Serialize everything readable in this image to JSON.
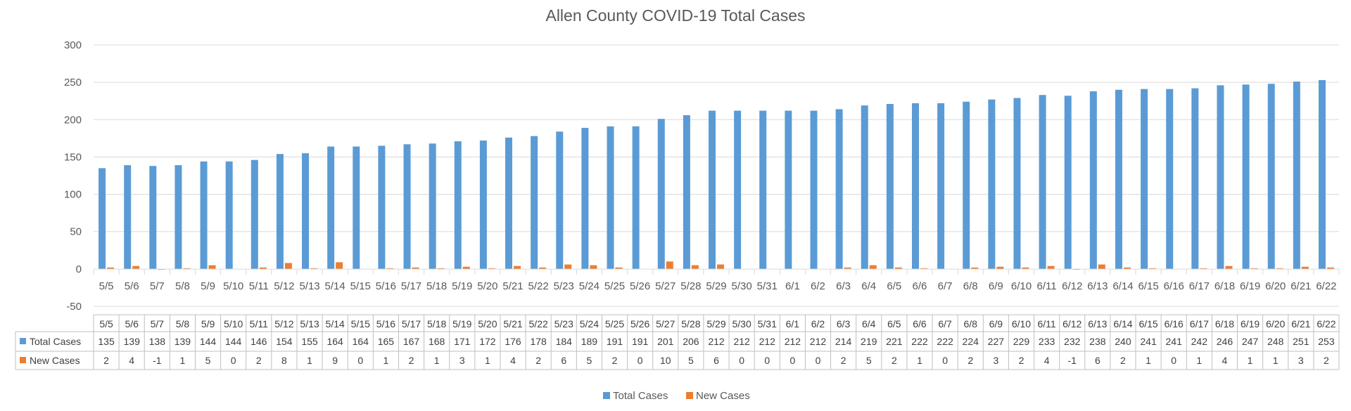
{
  "chart_data": {
    "type": "bar",
    "title": "Allen County COVID-19 Total Cases",
    "categories": [
      "5/5",
      "5/6",
      "5/7",
      "5/8",
      "5/9",
      "5/10",
      "5/11",
      "5/12",
      "5/13",
      "5/14",
      "5/15",
      "5/16",
      "5/17",
      "5/18",
      "5/19",
      "5/20",
      "5/21",
      "5/22",
      "5/23",
      "5/24",
      "5/25",
      "5/26",
      "5/27",
      "5/28",
      "5/29",
      "5/30",
      "5/31",
      "6/1",
      "6/2",
      "6/3",
      "6/4",
      "6/5",
      "6/6",
      "6/7",
      "6/8",
      "6/9",
      "6/10",
      "6/11",
      "6/12",
      "6/13",
      "6/14",
      "6/15",
      "6/16",
      "6/17",
      "6/18",
      "6/19",
      "6/20",
      "6/21",
      "6/22"
    ],
    "series": [
      {
        "name": "Total Cases",
        "color": "#5B9BD5",
        "values": [
          135,
          139,
          138,
          139,
          144,
          144,
          146,
          154,
          155,
          164,
          164,
          165,
          167,
          168,
          171,
          172,
          176,
          178,
          184,
          189,
          191,
          191,
          201,
          206,
          212,
          212,
          212,
          212,
          212,
          214,
          219,
          221,
          222,
          222,
          224,
          227,
          229,
          233,
          232,
          238,
          240,
          241,
          241,
          242,
          246,
          247,
          248,
          251,
          253
        ]
      },
      {
        "name": "New Cases",
        "color": "#ED7D31",
        "values": [
          2,
          4,
          -1,
          1,
          5,
          0,
          2,
          8,
          1,
          9,
          0,
          1,
          2,
          1,
          3,
          1,
          4,
          2,
          6,
          5,
          2,
          0,
          10,
          5,
          6,
          0,
          0,
          0,
          0,
          2,
          5,
          2,
          1,
          0,
          2,
          3,
          2,
          4,
          -1,
          6,
          2,
          1,
          0,
          1,
          4,
          1,
          1,
          3,
          2
        ]
      }
    ],
    "ylim": [
      -50,
      300
    ],
    "yticks": [
      -50,
      0,
      50,
      100,
      150,
      200,
      250,
      300
    ],
    "grid": true,
    "data_table": true,
    "legend_position": "bottom"
  }
}
